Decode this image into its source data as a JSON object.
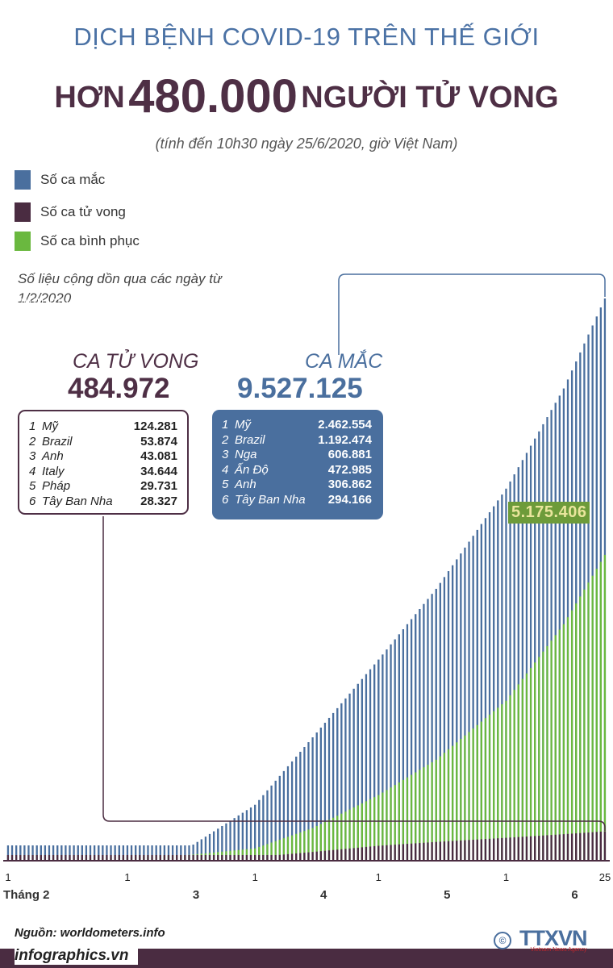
{
  "header": {
    "supertitle": "DỊCH BỆNH COVID-19 TRÊN THẾ GIỚI",
    "title_prefix": "HƠN",
    "title_number": "480.000",
    "title_suffix": "NGƯỜI TỬ VONG",
    "subtitle": "(tính đến 10h30 ngày 25/6/2020, giờ Việt Nam)"
  },
  "legend": [
    {
      "label": "Số ca mắc",
      "color": "#4a6f9e"
    },
    {
      "label": "Số ca tử vong",
      "color": "#4a2c41"
    },
    {
      "label": "Số ca bình phục",
      "color": "#6ab83f"
    }
  ],
  "note": "Số liệu cộng dồn qua các ngày từ 1/2/2020",
  "deaths": {
    "label": "CA TỬ VONG",
    "total": "484.972",
    "rows": [
      {
        "rank": "1",
        "name": "Mỹ",
        "value": "124.281"
      },
      {
        "rank": "2",
        "name": "Brazil",
        "value": "53.874"
      },
      {
        "rank": "3",
        "name": "Anh",
        "value": "43.081"
      },
      {
        "rank": "4",
        "name": "Italy",
        "value": "34.644"
      },
      {
        "rank": "5",
        "name": "Pháp",
        "value": "29.731"
      },
      {
        "rank": "6",
        "name": "Tây Ban Nha",
        "value": "28.327"
      }
    ]
  },
  "cases": {
    "label": "CA MẮC",
    "total": "9.527.125",
    "rows": [
      {
        "rank": "1",
        "name": "Mỹ",
        "value": "2.462.554"
      },
      {
        "rank": "2",
        "name": "Brazil",
        "value": "1.192.474"
      },
      {
        "rank": "3",
        "name": "Nga",
        "value": "606.881"
      },
      {
        "rank": "4",
        "name": "Ấn Độ",
        "value": "472.985"
      },
      {
        "rank": "5",
        "name": "Anh",
        "value": "306.862"
      },
      {
        "rank": "6",
        "name": "Tây Ban Nha",
        "value": "294.166"
      }
    ]
  },
  "recovered_callout": "5.175.406",
  "colors": {
    "cases": "#4a6f9e",
    "deaths": "#4a2c41",
    "recovered": "#6ab83f",
    "title_blue": "#4b72a5",
    "title_purple": "#4e2f45"
  },
  "chart_data": {
    "type": "bar",
    "stacked": "overlay",
    "x_start": "1/2/2020",
    "x_end": "25/6/2020",
    "x_tick_labels": [
      {
        "date": "1/2/2020",
        "day": "1",
        "month": "Tháng 2"
      },
      {
        "date": "1/3/2020",
        "day": "1",
        "month": "3"
      },
      {
        "date": "1/4/2020",
        "day": "1",
        "month": "4"
      },
      {
        "date": "1/5/2020",
        "day": "1",
        "month": "5"
      },
      {
        "date": "1/6/2020",
        "day": "1",
        "month": "6"
      },
      {
        "date": "25/6/2020",
        "day": "25",
        "month": ""
      }
    ],
    "series": [
      {
        "name": "Số ca mắc",
        "points": [
          [
            "1/2/2020",
            12000
          ],
          [
            "15/2/2020",
            69000
          ],
          [
            "1/3/2020",
            88000
          ],
          [
            "15/3/2020",
            170000
          ],
          [
            "1/4/2020",
            935000
          ],
          [
            "15/4/2020",
            2080000
          ],
          [
            "1/5/2020",
            3400000
          ],
          [
            "15/5/2020",
            4600000
          ],
          [
            "1/6/2020",
            6300000
          ],
          [
            "15/6/2020",
            8000000
          ],
          [
            "25/6/2020",
            9527125
          ]
        ]
      },
      {
        "name": "Số ca tử vong",
        "points": [
          [
            "1/2/2020",
            260
          ],
          [
            "15/2/2020",
            1670
          ],
          [
            "1/3/2020",
            3000
          ],
          [
            "15/3/2020",
            6500
          ],
          [
            "1/4/2020",
            47000
          ],
          [
            "15/4/2020",
            135000
          ],
          [
            "1/5/2020",
            240000
          ],
          [
            "15/5/2020",
            305000
          ],
          [
            "1/6/2020",
            375000
          ],
          [
            "15/6/2020",
            436000
          ],
          [
            "25/6/2020",
            484972
          ]
        ]
      },
      {
        "name": "Số ca bình phục",
        "points": [
          [
            "1/2/2020",
            300
          ],
          [
            "15/2/2020",
            11000
          ],
          [
            "1/3/2020",
            45000
          ],
          [
            "15/3/2020",
            78000
          ],
          [
            "1/4/2020",
            195000
          ],
          [
            "15/4/2020",
            540000
          ],
          [
            "1/5/2020",
            1100000
          ],
          [
            "15/5/2020",
            1700000
          ],
          [
            "1/6/2020",
            2700000
          ],
          [
            "15/6/2020",
            4000000
          ],
          [
            "25/6/2020",
            5175406
          ]
        ]
      }
    ]
  },
  "footer": {
    "source": "Nguồn: worldometers.info",
    "site": "infographics.vn",
    "logo": "TTXVN",
    "logo_sub": "Vietnam News Agency",
    "copyright": "©"
  }
}
